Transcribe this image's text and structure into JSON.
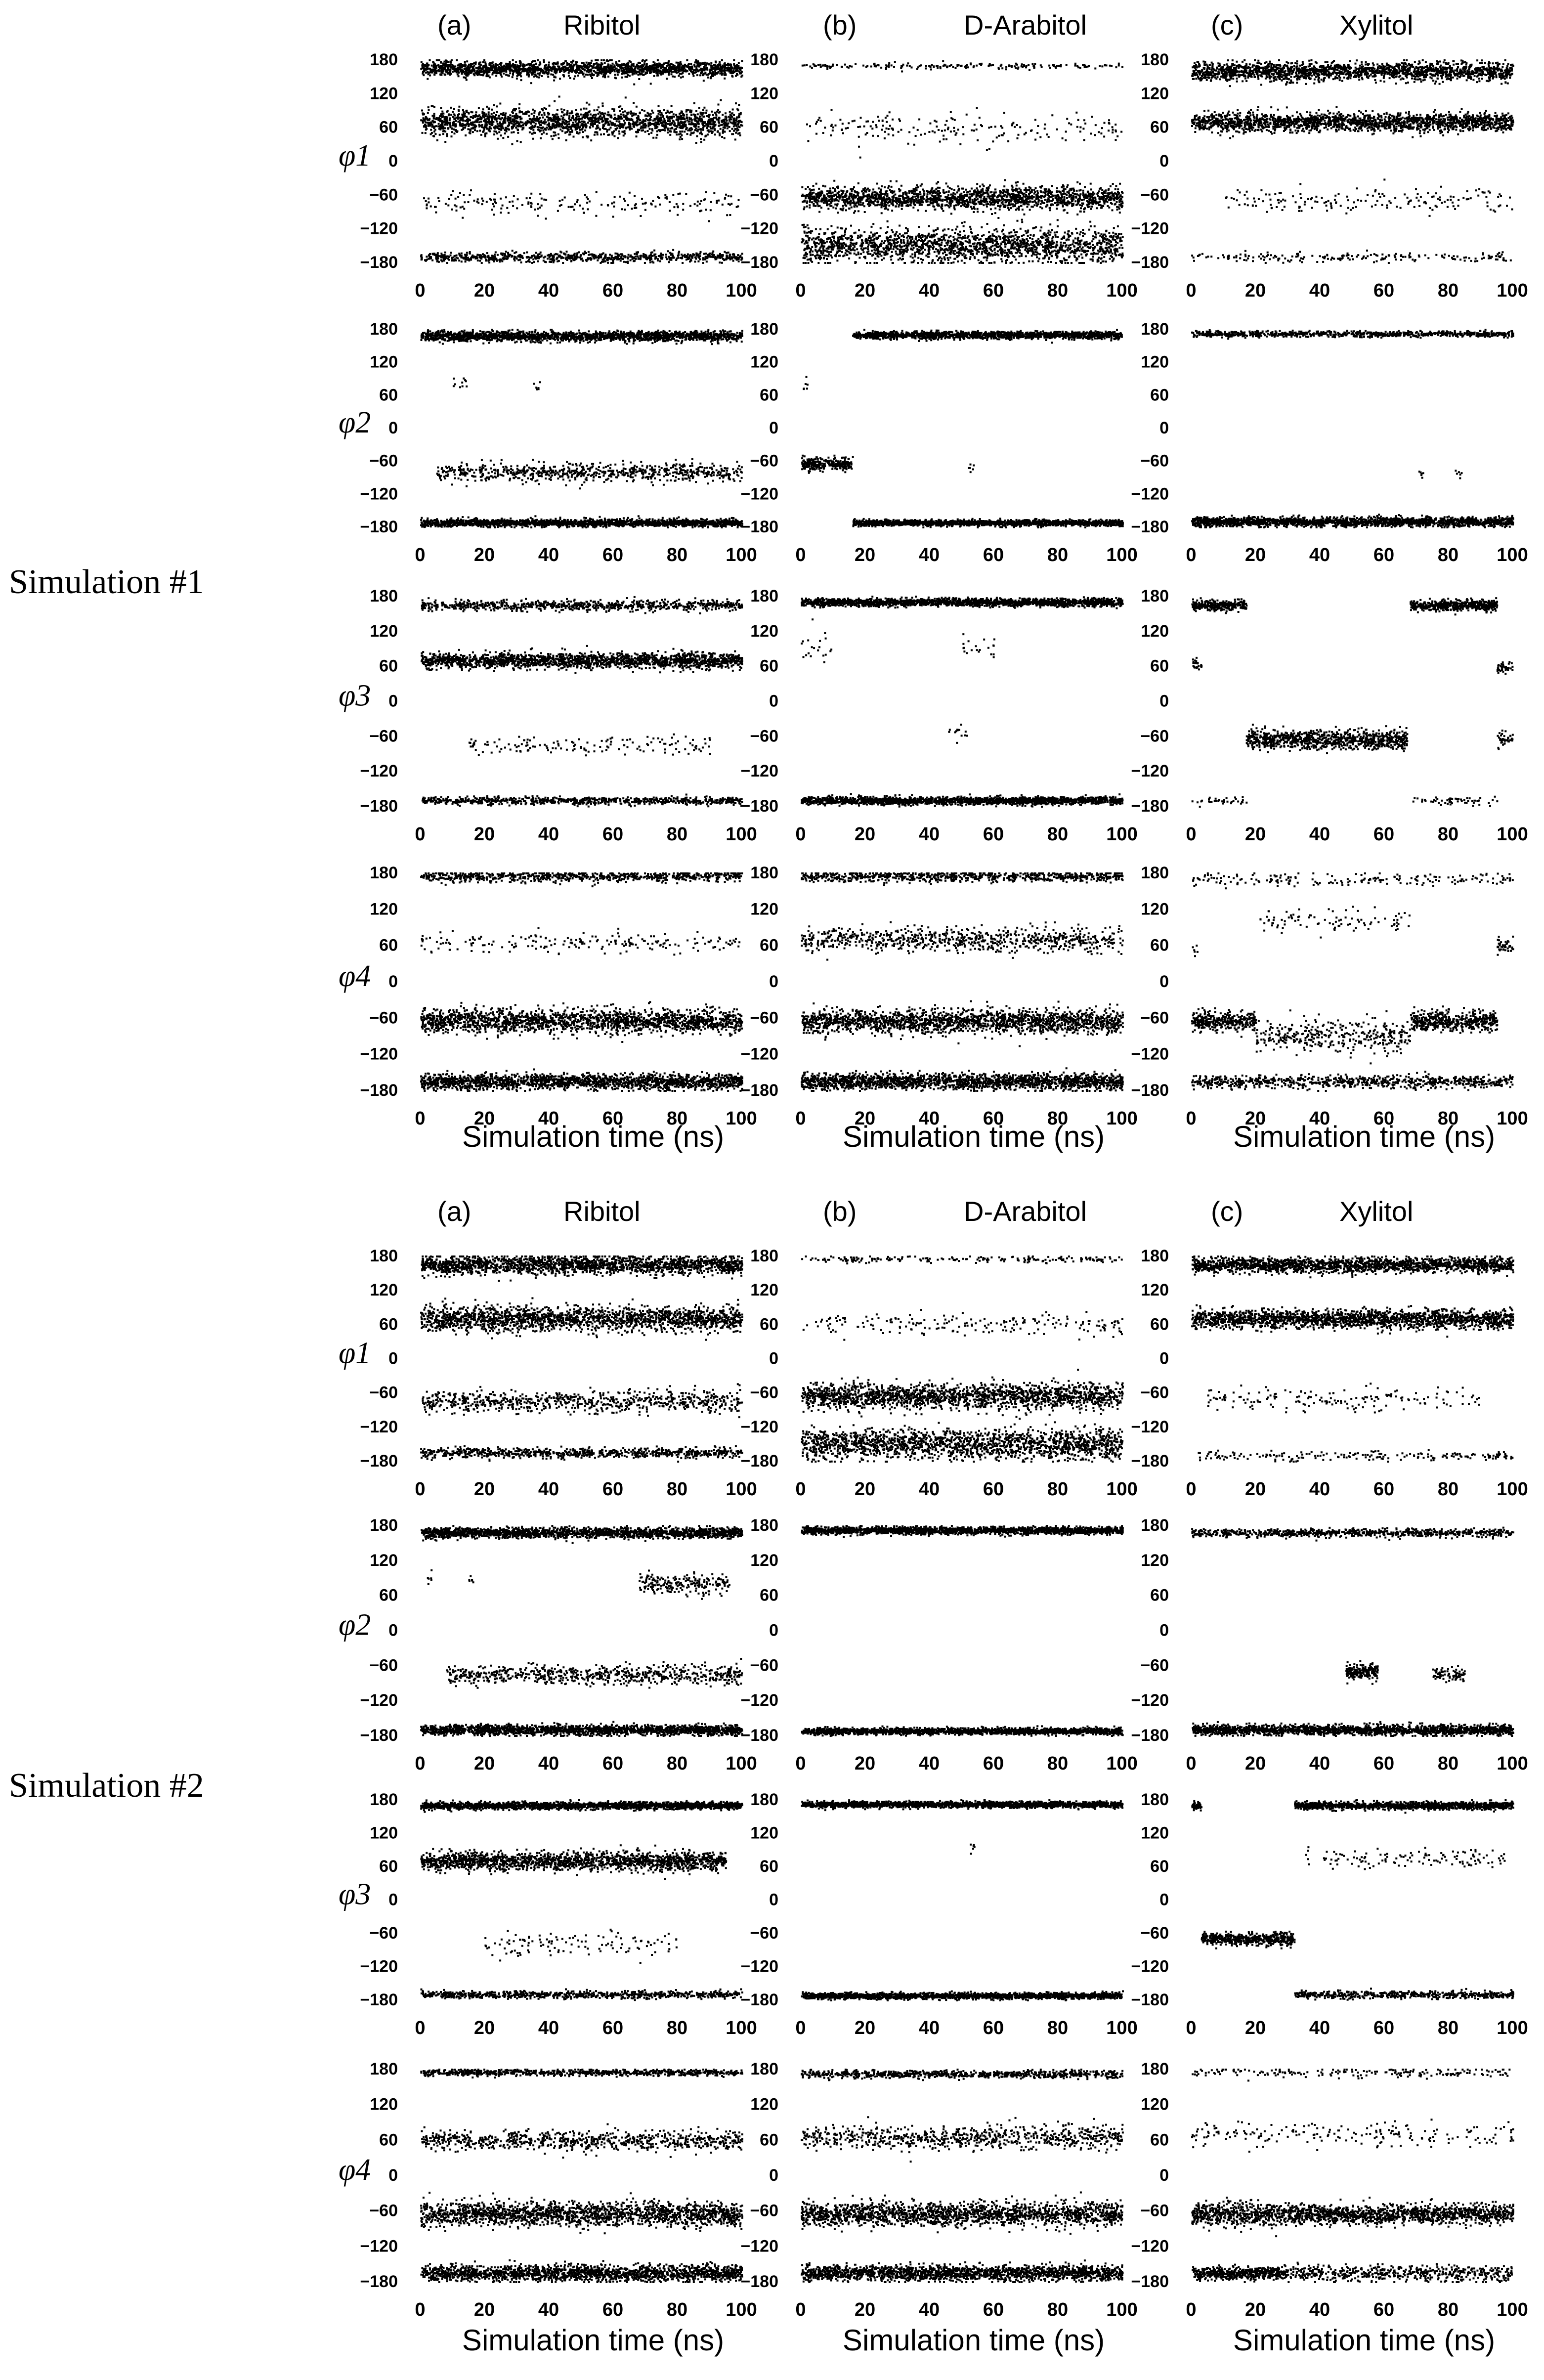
{
  "simulations": [
    {
      "label": "Simulation #1",
      "columns": [
        {
          "letter": "(a)",
          "name": "Ribitol"
        },
        {
          "letter": "(b)",
          "name": "D-Arabitol"
        },
        {
          "letter": "(c)",
          "name": "Xylitol"
        }
      ],
      "rows": [
        "φ1",
        "φ2",
        "φ3",
        "φ4"
      ],
      "xlabel": "Simulation time (ns)"
    },
    {
      "label": "Simulation #2",
      "columns": [
        {
          "letter": "(a)",
          "name": "Ribitol"
        },
        {
          "letter": "(b)",
          "name": "D-Arabitol"
        },
        {
          "letter": "(c)",
          "name": "Xylitol"
        }
      ],
      "rows": [
        "φ1",
        "φ2",
        "φ3",
        "φ4"
      ],
      "xlabel": "Simulation time (ns)"
    }
  ],
  "chart_data": {
    "type": "scatter",
    "xlim": [
      0,
      100
    ],
    "ylim": [
      -180,
      180
    ],
    "x_ticks": [
      0,
      20,
      40,
      60,
      80,
      100
    ],
    "y_ticks": [
      180,
      120,
      60,
      0,
      -60,
      -120,
      -180
    ],
    "point_color": "#000000",
    "note_bands": "each panel: list of [t_start, t_end, center_deg, spread_deg, density] populated dihedral regions",
    "panels": {
      "sim1": {
        "Ribitol": {
          "phi1": [
            [
              0,
              100,
              165,
              12,
              "high"
            ],
            [
              0,
              100,
              70,
              22,
              "high"
            ],
            [
              0,
              100,
              -75,
              18,
              "low"
            ],
            [
              0,
              100,
              -170,
              8,
              "medium"
            ]
          ],
          "phi2": [
            [
              0,
              100,
              168,
              8,
              "high"
            ],
            [
              10,
              15,
              85,
              10,
              "low"
            ],
            [
              35,
              38,
              75,
              12,
              "low"
            ],
            [
              5,
              100,
              -80,
              15,
              "medium"
            ],
            [
              0,
              100,
              -172,
              6,
              "high"
            ]
          ],
          "phi3": [
            [
              0,
              100,
              165,
              8,
              "medium"
            ],
            [
              0,
              100,
              70,
              12,
              "high"
            ],
            [
              15,
              90,
              -75,
              15,
              "low"
            ],
            [
              0,
              100,
              -170,
              6,
              "medium"
            ]
          ],
          "phi4": [
            [
              0,
              100,
              175,
              8,
              "medium"
            ],
            [
              0,
              100,
              65,
              15,
              "low"
            ],
            [
              0,
              100,
              -65,
              18,
              "high"
            ],
            [
              0,
              100,
              -165,
              12,
              "high"
            ]
          ]
        },
        "D-Arabitol": {
          "phi1": [
            [
              0,
              100,
              170,
              5,
              "low"
            ],
            [
              0,
              100,
              60,
              25,
              "low"
            ],
            [
              0,
              100,
              -65,
              18,
              "high"
            ],
            [
              0,
              100,
              -150,
              28,
              "high"
            ]
          ],
          "phi2": [
            [
              16,
              100,
              170,
              6,
              "high"
            ],
            [
              0,
              2,
              75,
              15,
              "low"
            ],
            [
              0,
              16,
              -65,
              10,
              "high"
            ],
            [
              52,
              54,
              -70,
              10,
              "low"
            ],
            [
              16,
              100,
              -172,
              5,
              "high"
            ]
          ],
          "phi3": [
            [
              0,
              100,
              170,
              6,
              "high"
            ],
            [
              0,
              10,
              90,
              25,
              "low"
            ],
            [
              50,
              60,
              95,
              15,
              "low"
            ],
            [
              45,
              52,
              -55,
              15,
              "low"
            ],
            [
              0,
              100,
              -170,
              6,
              "high"
            ]
          ],
          "phi4": [
            [
              0,
              100,
              175,
              8,
              "medium"
            ],
            [
              0,
              100,
              70,
              18,
              "medium"
            ],
            [
              0,
              100,
              -65,
              18,
              "high"
            ],
            [
              0,
              100,
              -165,
              12,
              "high"
            ]
          ]
        },
        "Xylitol": {
          "phi1": [
            [
              0,
              100,
              160,
              15,
              "high"
            ],
            [
              0,
              100,
              70,
              15,
              "high"
            ],
            [
              10,
              100,
              -70,
              20,
              "low"
            ],
            [
              0,
              100,
              -170,
              8,
              "low"
            ]
          ],
          "phi2": [
            [
              0,
              100,
              172,
              5,
              "medium"
            ],
            [
              70,
              72,
              -80,
              8,
              "low"
            ],
            [
              82,
              84,
              -80,
              12,
              "low"
            ],
            [
              0,
              100,
              -170,
              8,
              "high"
            ]
          ],
          "phi3": [
            [
              0,
              17,
              165,
              8,
              "high"
            ],
            [
              68,
              95,
              165,
              8,
              "high"
            ],
            [
              0,
              3,
              65,
              12,
              "medium"
            ],
            [
              95,
              100,
              60,
              12,
              "medium"
            ],
            [
              17,
              67,
              -65,
              15,
              "high"
            ],
            [
              95,
              100,
              -65,
              12,
              "medium"
            ],
            [
              0,
              17,
              -170,
              6,
              "low"
            ],
            [
              67,
              95,
              -170,
              6,
              "low"
            ]
          ],
          "phi4": [
            [
              0,
              100,
              170,
              10,
              "low"
            ],
            [
              20,
              68,
              100,
              18,
              "low"
            ],
            [
              0,
              2,
              50,
              12,
              "low"
            ],
            [
              95,
              100,
              60,
              10,
              "medium"
            ],
            [
              0,
              20,
              -65,
              15,
              "high"
            ],
            [
              68,
              95,
              -65,
              15,
              "high"
            ],
            [
              20,
              68,
              -90,
              25,
              "medium"
            ],
            [
              0,
              100,
              -165,
              10,
              "medium"
            ]
          ]
        }
      },
      "sim2": {
        "Ribitol": {
          "phi1": [
            [
              0,
              100,
              165,
              15,
              "high"
            ],
            [
              0,
              100,
              70,
              20,
              "high"
            ],
            [
              0,
              100,
              -75,
              18,
              "medium"
            ],
            [
              0,
              100,
              -165,
              8,
              "medium"
            ]
          ],
          "phi2": [
            [
              0,
              100,
              168,
              8,
              "high"
            ],
            [
              2,
              4,
              90,
              15,
              "low"
            ],
            [
              15,
              17,
              85,
              12,
              "low"
            ],
            [
              68,
              96,
              80,
              15,
              "medium"
            ],
            [
              8,
              100,
              -75,
              15,
              "medium"
            ],
            [
              0,
              100,
              -170,
              8,
              "high"
            ]
          ],
          "phi3": [
            [
              0,
              100,
              170,
              6,
              "high"
            ],
            [
              0,
              95,
              70,
              15,
              "high"
            ],
            [
              20,
              80,
              -80,
              20,
              "low"
            ],
            [
              0,
              100,
              -170,
              6,
              "medium"
            ]
          ],
          "phi4": [
            [
              0,
              100,
              175,
              5,
              "medium"
            ],
            [
              0,
              100,
              60,
              15,
              "medium"
            ],
            [
              0,
              100,
              -65,
              18,
              "high"
            ],
            [
              0,
              100,
              -165,
              12,
              "high"
            ]
          ]
        },
        "D-Arabitol": {
          "phi1": [
            [
              0,
              100,
              175,
              5,
              "low"
            ],
            [
              0,
              100,
              60,
              20,
              "low"
            ],
            [
              0,
              100,
              -65,
              20,
              "high"
            ],
            [
              0,
              100,
              -150,
              25,
              "high"
            ]
          ],
          "phi2": [
            [
              0,
              100,
              172,
              6,
              "high"
            ],
            [
              0,
              100,
              -172,
              5,
              "high"
            ]
          ],
          "phi3": [
            [
              0,
              100,
              172,
              5,
              "high"
            ],
            [
              52,
              54,
              95,
              12,
              "low"
            ],
            [
              0,
              100,
              -172,
              5,
              "high"
            ]
          ],
          "phi4": [
            [
              0,
              100,
              172,
              6,
              "medium"
            ],
            [
              0,
              100,
              65,
              18,
              "medium"
            ],
            [
              0,
              100,
              -65,
              18,
              "high"
            ],
            [
              0,
              100,
              -165,
              12,
              "high"
            ]
          ]
        },
        "Xylitol": {
          "phi1": [
            [
              0,
              100,
              165,
              12,
              "high"
            ],
            [
              0,
              100,
              70,
              15,
              "high"
            ],
            [
              5,
              90,
              -70,
              20,
              "low"
            ],
            [
              0,
              100,
              -170,
              8,
              "low"
            ]
          ],
          "phi2": [
            [
              0,
              100,
              168,
              6,
              "medium"
            ],
            [
              48,
              58,
              -70,
              12,
              "high"
            ],
            [
              75,
              85,
              -75,
              12,
              "medium"
            ],
            [
              0,
              100,
              -170,
              8,
              "high"
            ]
          ],
          "phi3": [
            [
              0,
              3,
              170,
              6,
              "high"
            ],
            [
              32,
              100,
              170,
              6,
              "high"
            ],
            [
              35,
              100,
              75,
              15,
              "low"
            ],
            [
              3,
              32,
              -70,
              10,
              "high"
            ],
            [
              32,
              100,
              -170,
              6,
              "medium"
            ]
          ],
          "phi4": [
            [
              0,
              100,
              175,
              8,
              "low"
            ],
            [
              0,
              100,
              70,
              20,
              "low"
            ],
            [
              30,
              100,
              -65,
              15,
              "high"
            ],
            [
              0,
              30,
              -65,
              18,
              "high"
            ],
            [
              0,
              30,
              -165,
              10,
              "high"
            ],
            [
              30,
              100,
              -165,
              12,
              "medium"
            ]
          ]
        }
      }
    }
  }
}
